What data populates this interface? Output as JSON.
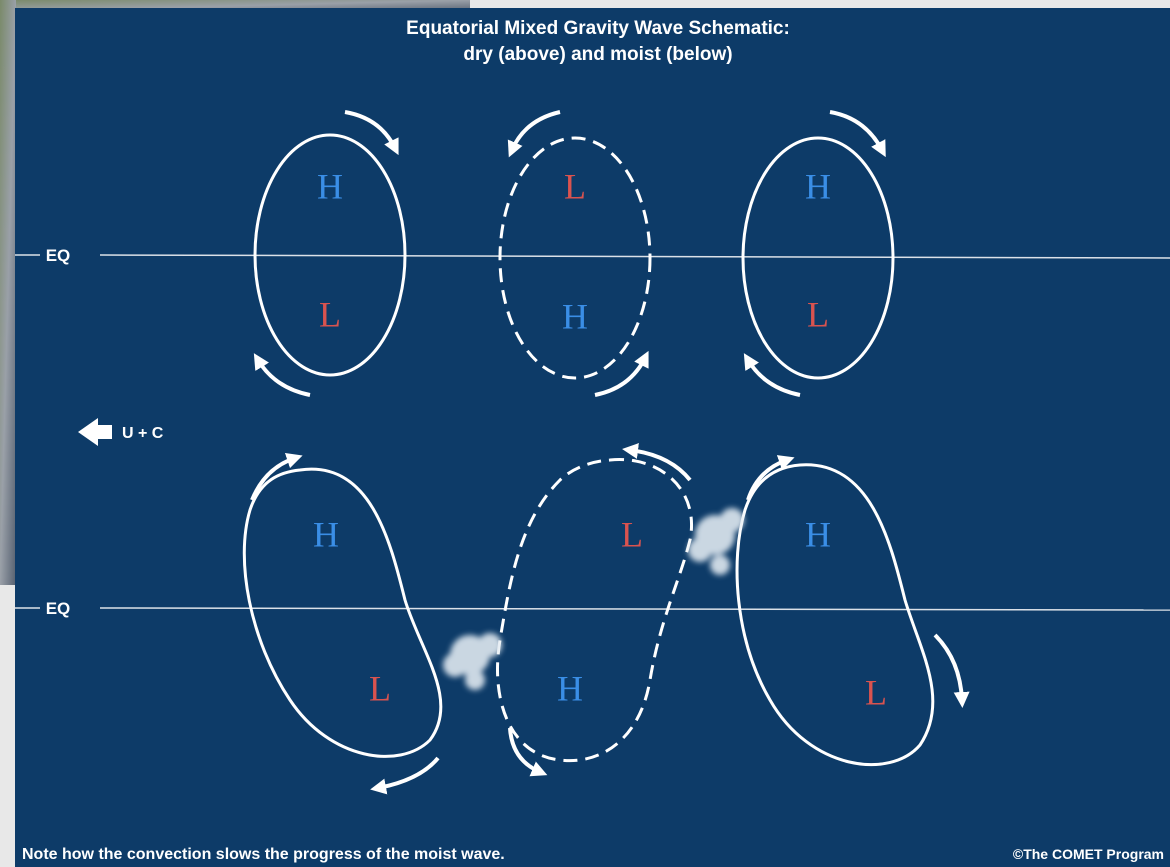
{
  "title": {
    "line1": "Equatorial Mixed Gravity Wave Schematic:",
    "line2": "dry (above) and moist (below)"
  },
  "dry": {
    "equator_label": "EQ",
    "cells": [
      {
        "top": "H",
        "bottom": "L"
      },
      {
        "top": "L",
        "bottom": "H"
      },
      {
        "top": "H",
        "bottom": "L"
      }
    ]
  },
  "moist": {
    "equator_label": "EQ",
    "cells": [
      {
        "top": "H",
        "bottom": "L"
      },
      {
        "top": "L",
        "bottom": "H"
      },
      {
        "top": "H",
        "bottom": "L"
      }
    ]
  },
  "motion_label": "U + C",
  "footer": {
    "note": "Note how the convection slows the progress of the moist wave.",
    "credit": "©The COMET Program"
  }
}
